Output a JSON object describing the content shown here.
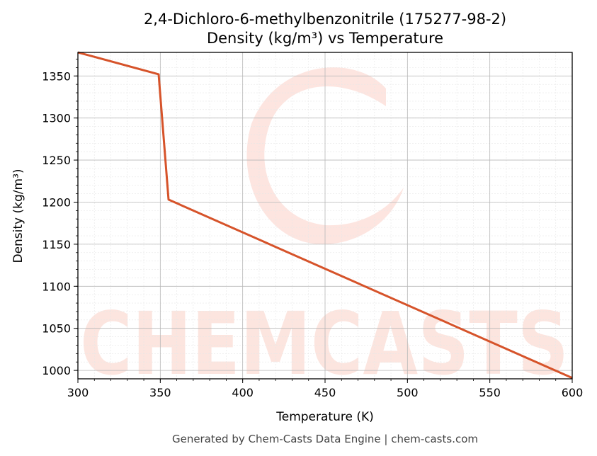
{
  "chart_data": {
    "type": "line",
    "title": "2,4-Dichloro-6-methylbenzonitrile (175277-98-2)",
    "subtitle": "Density (kg/m³) vs Temperature",
    "xlabel": "Temperature (K)",
    "ylabel": "Density (kg/m³)",
    "xlim": [
      300,
      600
    ],
    "ylim": [
      990,
      1378
    ],
    "xticks": [
      300,
      350,
      400,
      450,
      500,
      550,
      600
    ],
    "yticks": [
      1000,
      1050,
      1100,
      1150,
      1200,
      1250,
      1300,
      1350
    ],
    "grid": true,
    "legend": "none",
    "series": [
      {
        "color": "#d6532a",
        "x": [
          300,
          349,
          355,
          600
        ],
        "y": [
          1378,
          1352,
          1203,
          991
        ]
      }
    ]
  },
  "watermark": {
    "text": "CHEMCASTS",
    "color": "#fbd0c6"
  },
  "footer": "Generated by Chem-Casts Data Engine | chem-casts.com"
}
